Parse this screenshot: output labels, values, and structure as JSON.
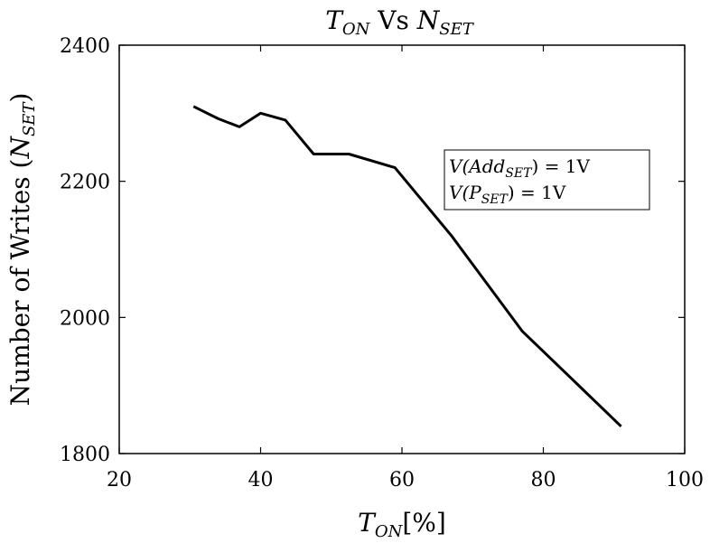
{
  "chart_data": {
    "type": "line",
    "title": "T_ON Vs N_SET",
    "title_parts": {
      "t": "T",
      "t_sub": "ON",
      "vs": " Vs ",
      "n": "N",
      "n_sub": "SET"
    },
    "xlabel": "T_ON[%]",
    "xlabel_parts": {
      "t": "T",
      "t_sub": "ON",
      "unit": "[%]"
    },
    "ylabel": "Number of Writes (N_SET)",
    "ylabel_parts": {
      "prefix": "Number of Writes (",
      "n": "N",
      "n_sub": "SET",
      "suffix": ")"
    },
    "xlim": [
      20,
      100
    ],
    "ylim": [
      1800,
      2400
    ],
    "xticks": [
      20,
      40,
      60,
      80,
      100
    ],
    "yticks": [
      1800,
      2000,
      2200,
      2400
    ],
    "grid": false,
    "legend_placement": "upper-right",
    "legend_lines": [
      {
        "pre": "V(Add",
        "sub": "SET",
        "post": ") = 1V"
      },
      {
        "pre": "V(P",
        "sub": "SET",
        "post": ") = 1V"
      }
    ],
    "series": [
      {
        "color": "#000000",
        "x": [
          30.5,
          34,
          37,
          40,
          43.5,
          47.5,
          52.5,
          59,
          67,
          77,
          91
        ],
        "y": [
          2310,
          2292,
          2280,
          2300,
          2290,
          2240,
          2240,
          2220,
          2120,
          1980,
          1840
        ]
      }
    ]
  }
}
